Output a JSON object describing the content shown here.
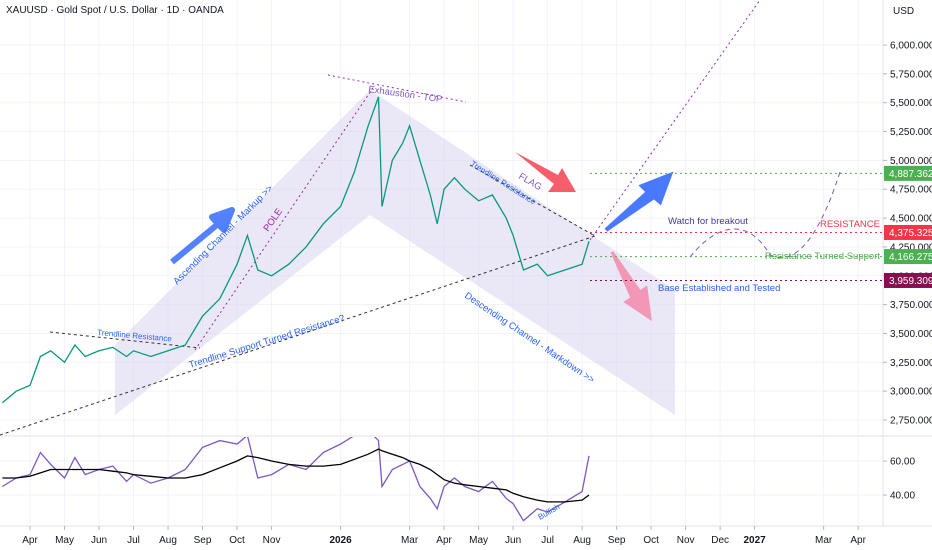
{
  "header": {
    "title": "XAUUSD · Gold Spot / U.S. Dollar · 1D · OANDA",
    "currency": "USD"
  },
  "annotations": [
    "Exhaustion - TOP",
    "POLE",
    "FLAG",
    "Ascending Channel - Markup >>",
    "Trendline Resistance",
    "Trendline Resistance",
    "Trendline Support Turned Resistance?",
    "Descending Channel - Markdown >>",
    "Watch for breakout",
    "RESISTANCE",
    "Resistance Turned Support",
    "Base Established and Tested",
    "Bullish"
  ],
  "chart_data": [
    {
      "type": "line",
      "grid": true,
      "x": [
        -0.8,
        -0.4,
        0,
        0.3,
        0.6,
        1.0,
        1.3,
        1.6,
        2.0,
        2.4,
        2.8,
        3.0,
        3.5,
        4.0,
        4.5,
        5.0,
        5.5,
        6.0,
        6.3,
        6.6,
        7.0,
        7.5,
        8.0,
        8.5,
        9.0,
        9.4,
        9.8,
        10.1,
        10.2,
        10.5,
        10.8,
        11.0,
        11.3,
        11.6,
        11.8,
        12.0,
        12.3,
        12.6,
        13.0,
        13.4,
        13.8,
        14.0,
        14.3,
        14.7,
        15.0,
        15.5,
        16.0,
        16.2
      ],
      "series": [
        {
          "color": "#089981",
          "values": [
            2900,
            3000,
            3050,
            3300,
            3350,
            3250,
            3400,
            3300,
            3350,
            3380,
            3300,
            3350,
            3300,
            3350,
            3400,
            3650,
            3800,
            4100,
            4350,
            4050,
            4000,
            4100,
            4250,
            4450,
            4600,
            4900,
            5300,
            5550,
            4600,
            5000,
            5150,
            5300,
            5000,
            4700,
            4450,
            4750,
            4850,
            4750,
            4650,
            4700,
            4500,
            4350,
            4050,
            4100,
            4000,
            4050,
            4100,
            4300
          ]
        }
      ],
      "xlim": [
        -0.87,
        24.72
      ],
      "xticks": [
        {
          "value": 0,
          "label": "Apr"
        },
        {
          "value": 1,
          "label": "May"
        },
        {
          "value": 2,
          "label": "Jun"
        },
        {
          "value": 3,
          "label": "Jul"
        },
        {
          "value": 4,
          "label": "Aug"
        },
        {
          "value": 5,
          "label": "Sep"
        },
        {
          "value": 6,
          "label": "Oct"
        },
        {
          "value": 7,
          "label": "Nov"
        },
        {
          "value": 9,
          "label": "2026"
        },
        {
          "value": 11,
          "label": "Mar"
        },
        {
          "value": 12,
          "label": "Apr"
        },
        {
          "value": 13,
          "label": "May"
        },
        {
          "value": 14,
          "label": "Jun"
        },
        {
          "value": 15,
          "label": "Jul"
        },
        {
          "value": 16,
          "label": "Aug"
        },
        {
          "value": 17,
          "label": "Sep"
        },
        {
          "value": 18,
          "label": "Oct"
        },
        {
          "value": 19,
          "label": "Nov"
        },
        {
          "value": 20,
          "label": "Dec"
        },
        {
          "value": 21,
          "label": "2027"
        },
        {
          "value": 23,
          "label": "Mar"
        },
        {
          "value": 24,
          "label": "Apr"
        }
      ],
      "ylim": [
        2620,
        6390
      ],
      "yticks": [
        {
          "value": 2750,
          "label": "2,750.000"
        },
        {
          "value": 3000,
          "label": "3,000.000"
        },
        {
          "value": 3250,
          "label": "3,250.000"
        },
        {
          "value": 3500,
          "label": "3,500.000"
        },
        {
          "value": 3750,
          "label": "3,750.000"
        },
        {
          "value": 4000,
          "label": "4,000.000"
        },
        {
          "value": 4250,
          "label": "4,250.000"
        },
        {
          "value": 4500,
          "label": "4,500.000"
        },
        {
          "value": 4750,
          "label": "4,750.000"
        },
        {
          "value": 5000,
          "label": "5,000.000"
        },
        {
          "value": 5250,
          "label": "5,250.000"
        },
        {
          "value": 5500,
          "label": "5,500.000"
        },
        {
          "value": 5750,
          "label": "5,750.000"
        },
        {
          "value": 6000,
          "label": "6,000.000"
        }
      ],
      "levels": [
        {
          "value": 4887.362,
          "label": "4,887.362",
          "color": "#4caf50"
        },
        {
          "value": 4375.325,
          "label": "4,375.325",
          "color": "#f23645"
        },
        {
          "value": 4166.275,
          "label": "4,166.275",
          "color": "#4caf50"
        },
        {
          "value": 3959.309,
          "label": "3,959.309",
          "color": "#880e4f"
        }
      ]
    },
    {
      "type": "line",
      "grid": true,
      "x": [
        -0.8,
        -0.4,
        0,
        0.3,
        0.6,
        1.0,
        1.3,
        1.6,
        2.0,
        2.4,
        2.8,
        3.0,
        3.5,
        4.0,
        4.5,
        5.0,
        5.5,
        6.0,
        6.3,
        6.6,
        7.0,
        7.5,
        8.0,
        8.5,
        9.0,
        9.4,
        9.8,
        10.1,
        10.2,
        10.5,
        10.8,
        11.0,
        11.3,
        11.6,
        11.8,
        12.0,
        12.3,
        12.6,
        13.0,
        13.4,
        13.8,
        14.0,
        14.3,
        14.7,
        15.0,
        15.5,
        16.0,
        16.2
      ],
      "series": [
        {
          "color": "#7e57c2",
          "values": [
            45,
            50,
            52,
            65,
            58,
            50,
            62,
            52,
            55,
            57,
            48,
            52,
            47,
            50,
            55,
            68,
            72,
            70,
            75,
            50,
            52,
            58,
            55,
            65,
            70,
            75,
            78,
            72,
            45,
            55,
            58,
            60,
            45,
            38,
            32,
            45,
            50,
            45,
            42,
            48,
            38,
            35,
            25,
            32,
            30,
            36,
            42,
            63
          ]
        },
        {
          "color": "#000000",
          "values": [
            50,
            50,
            51,
            53,
            55,
            55,
            55,
            55,
            55,
            54,
            53,
            52,
            51,
            50,
            50,
            52,
            56,
            60,
            63,
            62,
            60,
            58,
            57,
            57,
            58,
            61,
            64,
            67,
            66,
            64,
            62,
            60,
            58,
            55,
            52,
            49,
            47,
            46,
            45,
            44,
            43,
            41,
            39,
            37,
            36,
            36,
            37,
            40
          ]
        }
      ],
      "xlim": [
        -0.87,
        24.72
      ],
      "ylim": [
        22.4,
        74.1
      ],
      "yticks": [
        {
          "value": 40,
          "label": "40.00"
        },
        {
          "value": 60,
          "label": "60.00"
        }
      ]
    }
  ]
}
